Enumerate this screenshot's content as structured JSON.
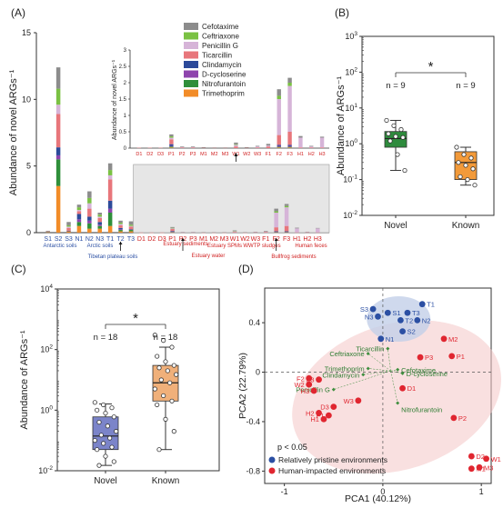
{
  "panel_labels": [
    "(A)",
    "(B)",
    "(C)",
    "(D)"
  ],
  "chart_data": [
    {
      "type": "bar",
      "panel": "(A)",
      "stacked": true,
      "ylabel": "Abundance of novel ARGs⁻¹",
      "ylim": [
        0,
        15
      ],
      "yticks": [
        0,
        5,
        10,
        15
      ],
      "categories": [
        "S1",
        "S2",
        "S3",
        "N1",
        "N2",
        "N3",
        "T1",
        "T2",
        "T3",
        "D1",
        "D2",
        "D3",
        "P1",
        "P2",
        "P3",
        "M1",
        "M2",
        "M3",
        "W1",
        "W2",
        "W3",
        "F1",
        "F2",
        "F3",
        "H1",
        "H2",
        "H3"
      ],
      "colors": {
        "Cefotaxime": "#8c8c8c",
        "Ceftriaxone": "#7ac143",
        "Penicillin G": "#d6b4d8",
        "Ticarcillin": "#e8767b",
        "Clindamycin": "#2c4a9a",
        "D-cycloserine": "#8e44ad",
        "Nitrofurantoin": "#2f8f3a",
        "Trimethoprim": "#f28c28"
      },
      "series": [
        {
          "name": "Cefotaxime",
          "values": [
            0.05,
            1.6,
            0.25,
            0.2,
            0.5,
            0.15,
            0.5,
            0.15,
            0.25,
            0,
            0,
            0,
            0.06,
            0.02,
            0.02,
            0.02,
            0.01,
            0.01,
            0.05,
            0.02,
            0.02,
            0.05,
            0.2,
            0.15,
            0.05,
            0.02,
            0.03
          ]
        },
        {
          "name": "Ceftriaxone",
          "values": [
            0,
            1.2,
            0.1,
            0.2,
            0.4,
            0.15,
            0.4,
            0.1,
            0.1,
            0,
            0,
            0,
            0.04,
            0,
            0,
            0,
            0,
            0,
            0.02,
            0,
            0,
            0,
            0.1,
            0.1,
            0,
            0,
            0
          ]
        },
        {
          "name": "Penicillin G",
          "values": [
            0,
            0.7,
            0.1,
            0.1,
            0.4,
            0.1,
            0.3,
            0.1,
            0.05,
            0,
            0,
            0,
            0.05,
            0.01,
            0.01,
            0,
            0,
            0,
            0.05,
            0,
            0.03,
            0.03,
            1.1,
            1.4,
            0.3,
            0.03,
            0.3
          ]
        },
        {
          "name": "Ticarcillin",
          "values": [
            0.05,
            2.5,
            0.2,
            0.2,
            0.6,
            0.3,
            1.6,
            0.2,
            0.2,
            0.01,
            0.01,
            0.01,
            0.15,
            0.02,
            0.02,
            0.01,
            0.01,
            0.01,
            0.05,
            0.01,
            0.02,
            0.05,
            0.3,
            0.4,
            0.02,
            0.02,
            0.02
          ]
        },
        {
          "name": "Clindamycin",
          "values": [
            0,
            0.6,
            0.05,
            0.4,
            0.3,
            0.2,
            0.6,
            0.1,
            0.05,
            0,
            0,
            0,
            0.05,
            0,
            0,
            0,
            0,
            0,
            0,
            0,
            0,
            0,
            0.03,
            0.03,
            0,
            0,
            0
          ]
        },
        {
          "name": "D-cycloserine",
          "values": [
            0,
            0.3,
            0,
            0.2,
            0.2,
            0.1,
            0.3,
            0.05,
            0,
            0,
            0,
            0,
            0.02,
            0,
            0,
            0,
            0,
            0,
            0,
            0,
            0,
            0,
            0.03,
            0.03,
            0,
            0,
            0
          ]
        },
        {
          "name": "Nitrofurantoin",
          "values": [
            0.02,
            2.0,
            0,
            0.3,
            0.4,
            0.2,
            1.0,
            0.1,
            0.1,
            0,
            0,
            0,
            0.03,
            0,
            0,
            0,
            0,
            0,
            0,
            0,
            0,
            0,
            0.02,
            0.02,
            0,
            0,
            0
          ]
        },
        {
          "name": "Trimethoprim",
          "values": [
            0.02,
            3.5,
            0.1,
            0.5,
            0.3,
            0.3,
            0.5,
            0.1,
            0.1,
            0,
            0,
            0,
            0.02,
            0,
            0,
            0,
            0,
            0,
            0,
            0,
            0,
            0,
            0.02,
            0.02,
            0,
            0,
            0
          ]
        }
      ],
      "group_labels": [
        "Antarctic soils",
        "Arctic soils",
        "Tibetan plateau soils",
        "Estuary sediments",
        "Estuary water",
        "Estuary SPMs",
        "WWTP sludges",
        "Bullfrog sediments",
        "Human feces"
      ],
      "inset": {
        "ylabel": "Abundance of novel ARGs⁻¹",
        "yticks": [
          0,
          0.5,
          1,
          1.5,
          2,
          2.5,
          3
        ]
      }
    },
    {
      "type": "box",
      "panel": "(B)",
      "ylabel": "Abundance of ARGs⁻¹",
      "yscale": "log",
      "ylim_exp": [
        -2,
        3
      ],
      "categories": [
        "Novel",
        "Known"
      ],
      "counts": [
        "n = 9",
        "n = 9"
      ],
      "significance": "*",
      "boxes": [
        {
          "name": "Novel",
          "q1": 0.8,
          "median": 1.4,
          "q3": 2.2,
          "whisker_low": 0.18,
          "whisker_high": 4.5,
          "color": "#2e8b3d",
          "points": [
            4.5,
            3.2,
            2.5,
            1.9,
            1.6,
            1.5,
            1.2,
            0.5,
            0.18
          ]
        },
        {
          "name": "Known",
          "q1": 0.1,
          "median": 0.3,
          "q3": 0.6,
          "whisker_low": 0.07,
          "whisker_high": 0.8,
          "color": "#f29a3a",
          "points": [
            0.8,
            0.5,
            0.4,
            0.3,
            0.25,
            0.2,
            0.12,
            0.1,
            0.07
          ]
        }
      ]
    },
    {
      "type": "box",
      "panel": "(C)",
      "ylabel": "Abundance of ARGs⁻¹",
      "yscale": "log",
      "ylim_exp": [
        -2,
        4
      ],
      "yticks_exp": [
        -2,
        0,
        2,
        4
      ],
      "categories": [
        "Novel",
        "Known"
      ],
      "counts": [
        "n = 18",
        "n = 18"
      ],
      "significance": "*",
      "boxes": [
        {
          "name": "Novel",
          "q1": 0.05,
          "median": 0.14,
          "q3": 0.6,
          "whisker_low": 0.015,
          "whisker_high": 1.6,
          "color": "#7b84c9",
          "points": [
            1.8,
            1.5,
            1.2,
            1.0,
            0.8,
            0.6,
            0.4,
            0.3,
            0.2,
            0.15,
            0.12,
            0.1,
            0.08,
            0.06,
            0.05,
            0.03,
            0.02,
            0.015
          ]
        },
        {
          "name": "Known",
          "q1": 2.0,
          "median": 8,
          "q3": 30,
          "whisker_low": 0.05,
          "whisker_high": 120,
          "color": "#f0b07a",
          "points": [
            300,
            200,
            120,
            60,
            40,
            30,
            25,
            20,
            15,
            10,
            8,
            5,
            3,
            2,
            1.5,
            0.5,
            0.2,
            0.05
          ]
        }
      ]
    },
    {
      "type": "scatter",
      "panel": "(D)",
      "xlabel": "PCA1 (40.12%)",
      "ylabel": "PCA2 (22.79%)",
      "xlim": [
        -1.2,
        1.1
      ],
      "ylim": [
        -0.9,
        0.68
      ],
      "xticks": [
        -1,
        0,
        1
      ],
      "yticks": [
        -0.8,
        -0.4,
        0,
        0.4
      ],
      "annotation": "p < 0.05",
      "legend": [
        {
          "name": "Relatively pristine environments",
          "color": "#2b4fa3"
        },
        {
          "name": "Human-impacted environments",
          "color": "#e02630"
        }
      ],
      "points": [
        {
          "label": "S1",
          "x": 0.05,
          "y": 0.48,
          "group": 0
        },
        {
          "label": "S2",
          "x": 0.2,
          "y": 0.33,
          "group": 0
        },
        {
          "label": "S3",
          "x": -0.1,
          "y": 0.51,
          "group": 0
        },
        {
          "label": "N1",
          "x": -0.02,
          "y": 0.27,
          "group": 0
        },
        {
          "label": "N2",
          "x": 0.35,
          "y": 0.42,
          "group": 0
        },
        {
          "label": "N3",
          "x": -0.05,
          "y": 0.45,
          "group": 0
        },
        {
          "label": "T1",
          "x": 0.4,
          "y": 0.55,
          "group": 0
        },
        {
          "label": "T2",
          "x": 0.18,
          "y": 0.42,
          "group": 0
        },
        {
          "label": "T3",
          "x": 0.25,
          "y": 0.48,
          "group": 0
        },
        {
          "label": "D1",
          "x": 0.2,
          "y": -0.13,
          "group": 1
        },
        {
          "label": "D2",
          "x": 0.9,
          "y": -0.68,
          "group": 1
        },
        {
          "label": "D3",
          "x": -0.5,
          "y": -0.28,
          "group": 1
        },
        {
          "label": "P1",
          "x": 0.7,
          "y": 0.13,
          "group": 1
        },
        {
          "label": "P2",
          "x": 0.72,
          "y": -0.37,
          "group": 1
        },
        {
          "label": "P3",
          "x": 0.38,
          "y": 0.12,
          "group": 1
        },
        {
          "label": "M1",
          "x": 0.9,
          "y": -0.78,
          "group": 1
        },
        {
          "label": "M2",
          "x": 0.62,
          "y": 0.27,
          "group": 1
        },
        {
          "label": "M3",
          "x": 0.98,
          "y": -0.77,
          "group": 1
        },
        {
          "label": "W1",
          "x": 1.05,
          "y": -0.7,
          "group": 1
        },
        {
          "label": "W2",
          "x": -0.75,
          "y": -0.1,
          "group": 1
        },
        {
          "label": "W3",
          "x": -0.25,
          "y": -0.23,
          "group": 1
        },
        {
          "label": "F1",
          "x": -0.55,
          "y": -0.35,
          "group": 1
        },
        {
          "label": "F2",
          "x": -0.75,
          "y": -0.05,
          "group": 1
        },
        {
          "label": "F3",
          "x": -0.65,
          "y": -0.06,
          "group": 1
        },
        {
          "label": "H1",
          "x": -0.6,
          "y": -0.38,
          "group": 1
        },
        {
          "label": "H2",
          "x": -0.65,
          "y": -0.33,
          "group": 1
        },
        {
          "label": "H3",
          "x": -0.7,
          "y": -0.15,
          "group": 1
        }
      ],
      "loadings": [
        {
          "label": "Ceftriaxone",
          "x": -0.15,
          "y": 0.15
        },
        {
          "label": "Ticarcillin",
          "x": 0.05,
          "y": 0.19
        },
        {
          "label": "Trimethoprim",
          "x": -0.15,
          "y": 0.03
        },
        {
          "label": "Clindamycin",
          "x": -0.2,
          "y": -0.02
        },
        {
          "label": "Cefotaxime",
          "x": 0.15,
          "y": 0.02
        },
        {
          "label": "D-cycloserine",
          "x": 0.2,
          "y": -0.01
        },
        {
          "label": "Penicillin G",
          "x": -0.5,
          "y": -0.14
        },
        {
          "label": "Nitrofurantoin",
          "x": 0.15,
          "y": -0.25
        }
      ]
    }
  ]
}
